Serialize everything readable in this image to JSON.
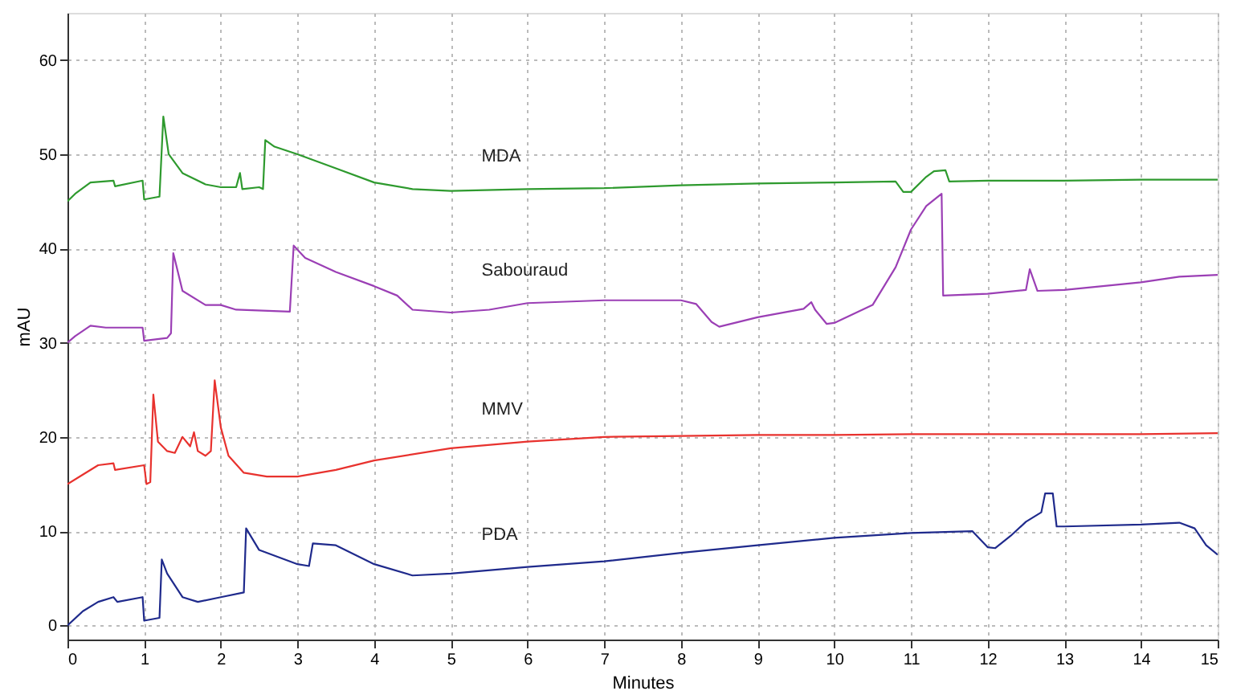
{
  "chart_data": {
    "type": "line",
    "xlabel": "Minutes",
    "ylabel": "mAU",
    "xlim": [
      0,
      15
    ],
    "ylim": [
      -1.5,
      65
    ],
    "xticks": [
      0,
      1,
      2,
      3,
      4,
      5,
      6,
      7,
      8,
      9,
      10,
      11,
      12,
      13,
      14,
      15
    ],
    "yticks": [
      0,
      10,
      20,
      30,
      40,
      50,
      60
    ],
    "grid": true,
    "legend": false,
    "marker": "none",
    "line_style": "solid",
    "series": [
      {
        "name": "MDA",
        "color": "#2e9a2e",
        "x": [
          0,
          0.1,
          0.3,
          0.6,
          0.62,
          0.98,
          1.0,
          1.2,
          1.25,
          1.32,
          1.5,
          1.8,
          2.0,
          2.2,
          2.25,
          2.28,
          2.5,
          2.55,
          2.58,
          2.7,
          3,
          3.5,
          4,
          4.5,
          5,
          6,
          7,
          8,
          9,
          10,
          10.8,
          10.9,
          11,
          11.2,
          11.3,
          11.45,
          11.5,
          12,
          13,
          14,
          15
        ],
        "values": [
          45,
          45.8,
          47,
          47.2,
          46.6,
          47.2,
          45.2,
          45.5,
          54,
          50,
          48,
          46.8,
          46.5,
          46.5,
          48,
          46.3,
          46.5,
          46.3,
          51.5,
          50.8,
          50,
          48.5,
          47,
          46.3,
          46.1,
          46.3,
          46.4,
          46.7,
          46.9,
          47,
          47.1,
          46,
          46,
          47.6,
          48.2,
          48.3,
          47.1,
          47.2,
          47.2,
          47.3,
          47.3
        ]
      },
      {
        "name": "Sabouraud",
        "color": "#9b3fb5",
        "x": [
          0,
          0.1,
          0.3,
          0.5,
          0.98,
          1.0,
          1.3,
          1.35,
          1.38,
          1.5,
          1.8,
          2.0,
          2.2,
          2.9,
          2.95,
          3.1,
          3.5,
          4,
          4.3,
          4.5,
          5,
          5.5,
          6,
          7,
          8,
          8.2,
          8.4,
          8.5,
          9,
          9.6,
          9.7,
          9.75,
          9.9,
          10,
          10.5,
          10.8,
          11,
          11.2,
          11.4,
          11.42,
          12,
          12.5,
          12.55,
          12.65,
          13,
          14,
          14.5,
          15
        ],
        "values": [
          30,
          30.7,
          31.8,
          31.6,
          31.6,
          30.2,
          30.5,
          31,
          39.5,
          35.5,
          34,
          34,
          33.5,
          33.3,
          40.3,
          39,
          37.5,
          36,
          35,
          33.5,
          33.2,
          33.5,
          34.2,
          34.5,
          34.5,
          34.1,
          32.2,
          31.7,
          32.7,
          33.6,
          34.3,
          33.5,
          32,
          32.1,
          34,
          38,
          42,
          44.5,
          45.8,
          35,
          35.2,
          35.6,
          37.8,
          35.5,
          35.6,
          36.4,
          37,
          37.2
        ]
      },
      {
        "name": "MMV",
        "color": "#e8322e",
        "x": [
          0,
          0.2,
          0.4,
          0.6,
          0.62,
          1.0,
          1.03,
          1.08,
          1.12,
          1.18,
          1.3,
          1.4,
          1.5,
          1.6,
          1.65,
          1.7,
          1.8,
          1.87,
          1.92,
          2.0,
          2.1,
          2.3,
          2.6,
          3,
          3.5,
          4,
          5,
          6,
          7,
          8,
          9,
          10,
          11,
          12,
          13,
          14,
          15
        ],
        "values": [
          15,
          16,
          17,
          17.2,
          16.5,
          17,
          15,
          15.2,
          24.5,
          19.5,
          18.5,
          18.3,
          20,
          19,
          20.5,
          18.5,
          18,
          18.5,
          26,
          21,
          18,
          16.2,
          15.8,
          15.8,
          16.5,
          17.5,
          18.8,
          19.5,
          20,
          20.1,
          20.2,
          20.2,
          20.3,
          20.3,
          20.3,
          20.3,
          20.4
        ]
      },
      {
        "name": "PDA",
        "color": "#1f2a8c",
        "x": [
          0,
          0.2,
          0.4,
          0.6,
          0.65,
          0.98,
          1.0,
          1.2,
          1.23,
          1.3,
          1.5,
          1.7,
          2.0,
          2.3,
          2.33,
          2.5,
          3,
          3.15,
          3.2,
          3.5,
          4,
          4.5,
          5,
          6,
          7,
          8,
          9,
          10,
          11,
          11.8,
          12,
          12.1,
          12.3,
          12.5,
          12.7,
          12.75,
          12.85,
          12.9,
          13,
          14,
          14.5,
          14.7,
          14.85,
          15
        ],
        "values": [
          0,
          1.5,
          2.5,
          3,
          2.5,
          3,
          0.5,
          0.8,
          7,
          5.5,
          3,
          2.5,
          3,
          3.5,
          10.3,
          8,
          6.5,
          6.3,
          8.7,
          8.5,
          6.5,
          5.3,
          5.5,
          6.2,
          6.8,
          7.7,
          8.5,
          9.3,
          9.8,
          10,
          8.3,
          8.2,
          9.5,
          11,
          12,
          14,
          14,
          10.5,
          10.5,
          10.7,
          10.9,
          10.3,
          8.5,
          7.5
        ]
      }
    ]
  }
}
